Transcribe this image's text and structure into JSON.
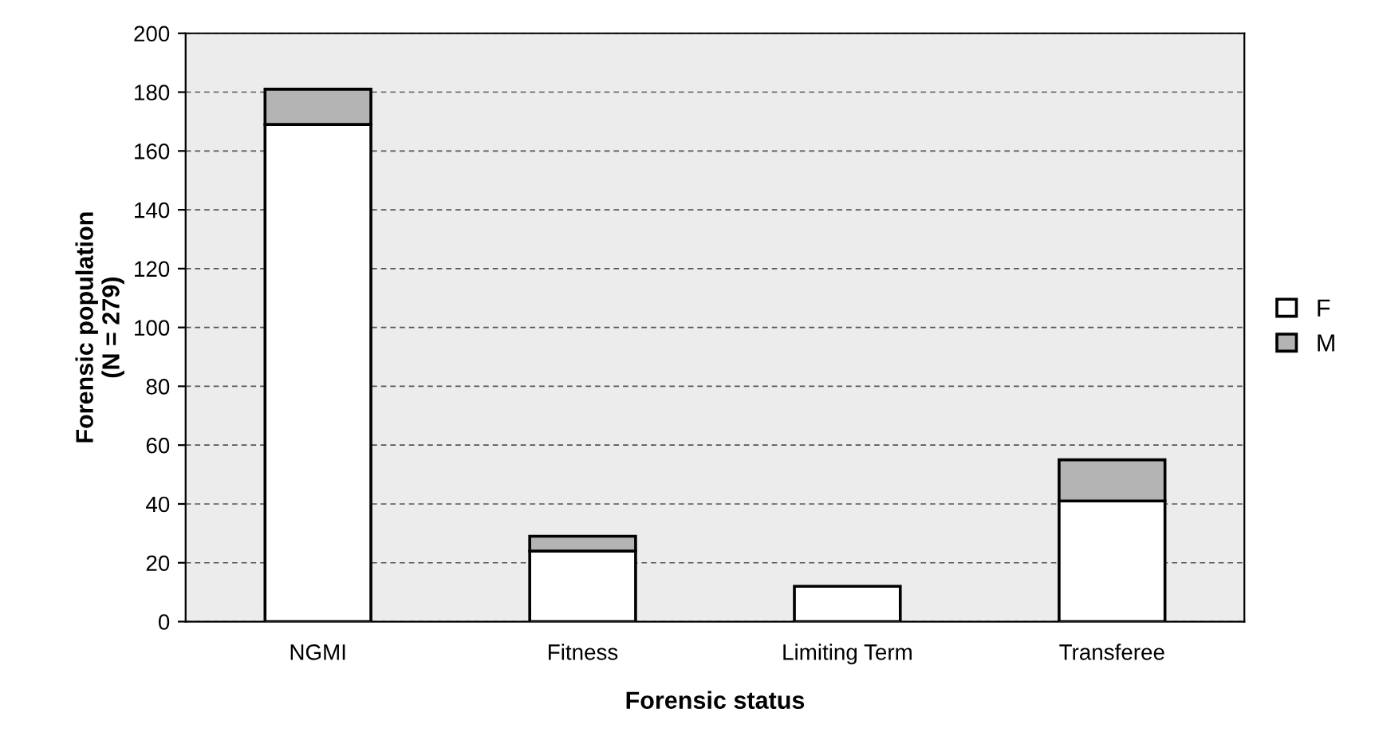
{
  "chart_data": {
    "type": "bar",
    "stacked": true,
    "xlabel": "Forensic status",
    "ylabel": "Forensic population\n(N = 279)",
    "categories": [
      "NGMI",
      "Fitness",
      "Limiting Term",
      "Transferee"
    ],
    "series": [
      {
        "name": "F",
        "color": "#ffffff",
        "values": [
          169,
          24,
          12,
          41
        ]
      },
      {
        "name": "M",
        "color": "#b4b4b4",
        "values": [
          12,
          5,
          0,
          14
        ]
      }
    ],
    "ylim": [
      0,
      200
    ],
    "yticks": [
      0,
      20,
      40,
      60,
      80,
      100,
      120,
      140,
      160,
      180,
      200
    ],
    "grid": "y",
    "legend": "right"
  }
}
